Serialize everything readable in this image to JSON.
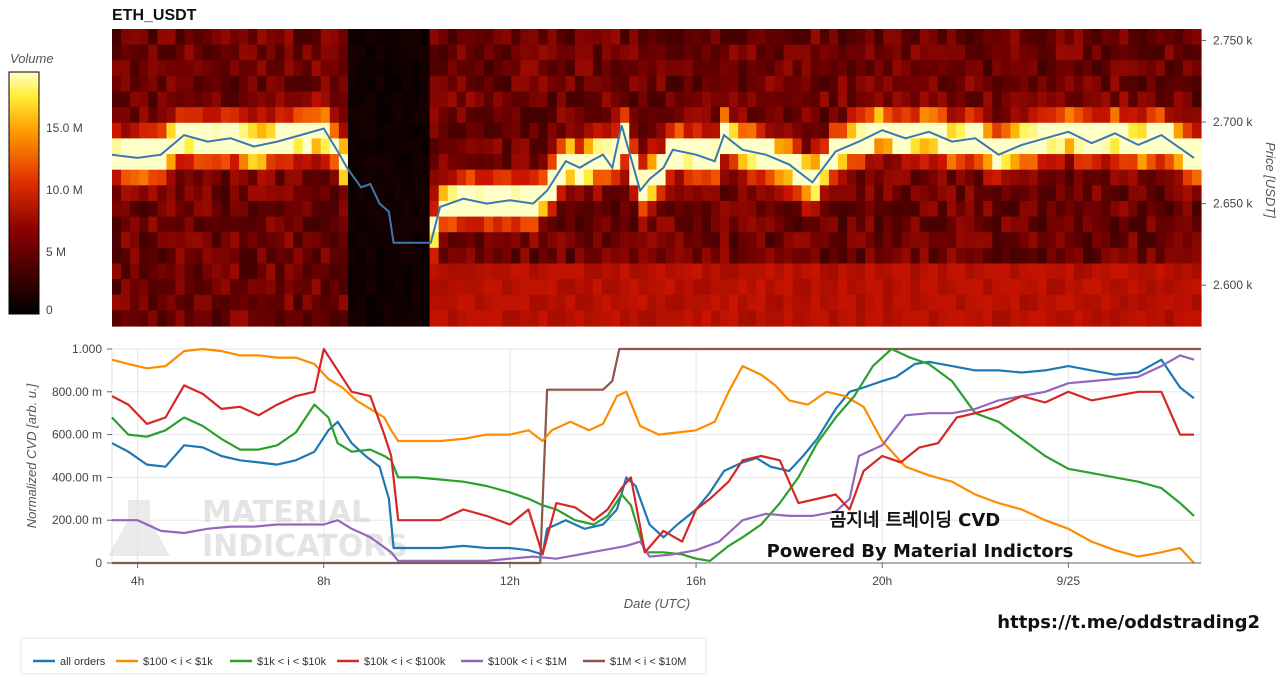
{
  "colors": {
    "price_line": "#3b78b0",
    "heat_low": "#000000",
    "heat_mid": "#cc0000",
    "heat_high": "#ffff66",
    "all_orders": "#1f77b4",
    "s100_1k": "#ff8c00",
    "s1k_10k": "#2ca02c",
    "s10k_100k": "#d62728",
    "s100k_1m": "#9467bd",
    "s1m_10m": "#8c564b"
  },
  "chart_data": [
    {
      "type": "heatmap",
      "title": "ETH_USDT",
      "ylabel": "Price [USDT]",
      "ylim": [
        2575,
        2757
      ],
      "y_ticks": [
        "2.600 k",
        "2.650 k",
        "2.700 k",
        "2.750 k"
      ],
      "y_tick_values": [
        2600,
        2650,
        2700,
        2750
      ],
      "colorbar": {
        "label": "Volume",
        "range": [
          0,
          19500000
        ],
        "ticks": [
          "0",
          "5 M",
          "10.0 M",
          "15.0 M"
        ],
        "tick_values": [
          0,
          5000000,
          10000000,
          15000000
        ]
      },
      "price_series": {
        "name": "Price",
        "x": [
          3.45,
          4.0,
          4.5,
          5.0,
          5.5,
          6.0,
          6.5,
          7.0,
          7.5,
          8.0,
          8.3,
          8.5,
          8.8,
          9.0,
          9.2,
          9.4,
          9.5,
          10.3,
          10.5,
          11.0,
          11.5,
          12.0,
          12.5,
          12.8,
          13.2,
          13.5,
          13.8,
          14.0,
          14.2,
          14.4,
          14.6,
          14.8,
          15.0,
          15.3,
          15.5,
          16.0,
          16.4,
          16.6,
          17.0,
          17.5,
          18.0,
          18.5,
          19.0,
          19.5,
          20.0,
          20.5,
          21.0,
          21.5,
          22.0,
          22.5,
          23.0,
          23.5,
          24.0,
          24.5,
          25.0,
          25.5,
          26.0,
          26.7
        ],
        "y": [
          2680,
          2678,
          2680,
          2692,
          2688,
          2690,
          2685,
          2688,
          2692,
          2696,
          2682,
          2672,
          2660,
          2662,
          2650,
          2645,
          2626,
          2626,
          2648,
          2653,
          2650,
          2652,
          2650,
          2658,
          2676,
          2672,
          2677,
          2680,
          2672,
          2698,
          2678,
          2658,
          2665,
          2672,
          2683,
          2680,
          2676,
          2692,
          2683,
          2680,
          2674,
          2663,
          2682,
          2688,
          2695,
          2690,
          2694,
          2688,
          2690,
          2680,
          2686,
          2690,
          2694,
          2687,
          2693,
          2686,
          2692,
          2678
        ]
      },
      "x_range": [
        3.45,
        26.85
      ]
    },
    {
      "type": "line",
      "xlabel": "Date (UTC)",
      "ylabel": "Normalized CVD [arb. u.]",
      "ylim": [
        0,
        1
      ],
      "x_ticks": [
        "4h",
        "8h",
        "12h",
        "16h",
        "20h",
        "9/25"
      ],
      "x_tick_values": [
        4,
        8,
        12,
        16,
        20,
        24
      ],
      "y_ticks": [
        "0",
        "200.00 m",
        "400.00 m",
        "600.00 m",
        "800.00 m",
        "1.000"
      ],
      "y_tick_values": [
        0,
        0.2,
        0.4,
        0.6,
        0.8,
        1.0
      ],
      "x_range": [
        3.45,
        26.85
      ],
      "series": [
        {
          "name": "all orders",
          "x": [
            3.45,
            3.8,
            4.2,
            4.6,
            5.0,
            5.4,
            5.8,
            6.2,
            6.6,
            7.0,
            7.4,
            7.8,
            8.1,
            8.3,
            8.6,
            8.9,
            9.2,
            9.4,
            9.5,
            10.0,
            10.5,
            11.0,
            11.5,
            12.0,
            12.4,
            12.7,
            12.8,
            13.2,
            13.6,
            14.0,
            14.3,
            14.5,
            14.7,
            15.0,
            15.3,
            15.6,
            16.0,
            16.3,
            16.6,
            17.0,
            17.3,
            17.6,
            18.0,
            18.3,
            18.6,
            19.0,
            19.3,
            19.6,
            20.0,
            20.3,
            20.7,
            21.0,
            21.5,
            22.0,
            22.5,
            23.0,
            23.5,
            24.0,
            24.5,
            25.0,
            25.5,
            26.0,
            26.4,
            26.7
          ],
          "y": [
            0.56,
            0.52,
            0.46,
            0.45,
            0.55,
            0.54,
            0.5,
            0.48,
            0.47,
            0.46,
            0.48,
            0.52,
            0.62,
            0.66,
            0.56,
            0.5,
            0.45,
            0.3,
            0.07,
            0.07,
            0.07,
            0.08,
            0.07,
            0.07,
            0.06,
            0.04,
            0.16,
            0.2,
            0.16,
            0.18,
            0.25,
            0.4,
            0.36,
            0.18,
            0.12,
            0.18,
            0.25,
            0.33,
            0.43,
            0.47,
            0.49,
            0.45,
            0.43,
            0.5,
            0.58,
            0.72,
            0.8,
            0.82,
            0.85,
            0.87,
            0.93,
            0.94,
            0.92,
            0.9,
            0.9,
            0.89,
            0.9,
            0.92,
            0.9,
            0.88,
            0.89,
            0.95,
            0.82,
            0.77
          ]
        },
        {
          "name": "$100 < i < $1k",
          "x": [
            3.45,
            3.8,
            4.2,
            4.6,
            5.0,
            5.4,
            5.8,
            6.2,
            6.6,
            7.0,
            7.4,
            7.8,
            8.1,
            8.4,
            8.7,
            9.0,
            9.3,
            9.45,
            9.6,
            10.0,
            10.5,
            11.0,
            11.5,
            12.0,
            12.4,
            12.7,
            12.9,
            13.3,
            13.7,
            14.0,
            14.3,
            14.5,
            14.8,
            15.2,
            15.6,
            16.0,
            16.4,
            16.7,
            17.0,
            17.4,
            17.7,
            18.0,
            18.4,
            18.8,
            19.2,
            19.6,
            20.0,
            20.5,
            21.0,
            21.5,
            22.0,
            22.5,
            23.0,
            23.5,
            24.0,
            24.5,
            25.0,
            25.5,
            26.0,
            26.4,
            26.7
          ],
          "y": [
            0.95,
            0.93,
            0.91,
            0.92,
            0.99,
            1.0,
            0.99,
            0.97,
            0.97,
            0.96,
            0.96,
            0.93,
            0.86,
            0.82,
            0.76,
            0.72,
            0.68,
            0.62,
            0.57,
            0.57,
            0.57,
            0.58,
            0.6,
            0.6,
            0.62,
            0.57,
            0.62,
            0.66,
            0.62,
            0.65,
            0.78,
            0.8,
            0.64,
            0.6,
            0.61,
            0.62,
            0.66,
            0.8,
            0.92,
            0.88,
            0.83,
            0.76,
            0.74,
            0.8,
            0.78,
            0.73,
            0.57,
            0.45,
            0.41,
            0.38,
            0.32,
            0.28,
            0.25,
            0.2,
            0.16,
            0.1,
            0.06,
            0.03,
            0.05,
            0.07,
            0.0
          ]
        },
        {
          "name": "$1k < i < $10k",
          "x": [
            3.45,
            3.8,
            4.2,
            4.6,
            5.0,
            5.4,
            5.8,
            6.2,
            6.6,
            7.0,
            7.4,
            7.8,
            8.1,
            8.3,
            8.6,
            9.0,
            9.3,
            9.45,
            9.6,
            10.0,
            10.5,
            11.0,
            11.5,
            12.0,
            12.4,
            12.7,
            13.0,
            13.4,
            13.8,
            14.1,
            14.4,
            14.6,
            14.9,
            15.3,
            15.7,
            16.0,
            16.3,
            16.7,
            17.0,
            17.4,
            17.8,
            18.2,
            18.6,
            19.0,
            19.4,
            19.8,
            20.2,
            20.6,
            21.0,
            21.5,
            22.0,
            22.5,
            23.0,
            23.5,
            24.0,
            24.5,
            25.0,
            25.5,
            26.0,
            26.4,
            26.7
          ],
          "y": [
            0.68,
            0.6,
            0.59,
            0.62,
            0.68,
            0.64,
            0.58,
            0.53,
            0.53,
            0.55,
            0.61,
            0.74,
            0.68,
            0.56,
            0.52,
            0.53,
            0.5,
            0.48,
            0.4,
            0.4,
            0.39,
            0.38,
            0.36,
            0.33,
            0.3,
            0.27,
            0.25,
            0.2,
            0.18,
            0.22,
            0.32,
            0.27,
            0.05,
            0.05,
            0.04,
            0.02,
            0.01,
            0.08,
            0.12,
            0.18,
            0.28,
            0.4,
            0.56,
            0.68,
            0.78,
            0.92,
            1.0,
            0.96,
            0.93,
            0.85,
            0.7,
            0.66,
            0.58,
            0.5,
            0.44,
            0.42,
            0.4,
            0.38,
            0.35,
            0.28,
            0.22
          ]
        },
        {
          "name": "$10k < i < $100k",
          "x": [
            3.45,
            3.8,
            4.2,
            4.6,
            5.0,
            5.4,
            5.8,
            6.2,
            6.6,
            7.0,
            7.4,
            7.8,
            8.0,
            8.3,
            8.6,
            9.0,
            9.3,
            9.45,
            9.6,
            10.0,
            10.5,
            11.0,
            11.5,
            12.0,
            12.4,
            12.7,
            13.0,
            13.4,
            13.8,
            14.1,
            14.4,
            14.6,
            14.9,
            15.3,
            15.7,
            16.0,
            16.3,
            16.7,
            17.0,
            17.4,
            17.8,
            18.2,
            18.6,
            19.0,
            19.3,
            19.6,
            20.0,
            20.4,
            20.8,
            21.2,
            21.6,
            22.0,
            22.5,
            23.0,
            23.5,
            24.0,
            24.5,
            25.0,
            25.5,
            26.0,
            26.4,
            26.7
          ],
          "y": [
            0.78,
            0.74,
            0.65,
            0.68,
            0.83,
            0.79,
            0.72,
            0.73,
            0.69,
            0.74,
            0.78,
            0.8,
            1.0,
            0.9,
            0.8,
            0.78,
            0.6,
            0.5,
            0.2,
            0.2,
            0.2,
            0.25,
            0.22,
            0.18,
            0.25,
            0.04,
            0.28,
            0.26,
            0.2,
            0.25,
            0.35,
            0.4,
            0.05,
            0.15,
            0.1,
            0.25,
            0.3,
            0.38,
            0.48,
            0.5,
            0.48,
            0.28,
            0.3,
            0.32,
            0.25,
            0.43,
            0.5,
            0.47,
            0.54,
            0.56,
            0.68,
            0.7,
            0.73,
            0.78,
            0.75,
            0.8,
            0.76,
            0.78,
            0.8,
            0.8,
            0.6,
            0.6
          ]
        },
        {
          "name": "$100k < i < $1M",
          "x": [
            3.45,
            4.0,
            4.5,
            5.0,
            5.5,
            6.0,
            6.5,
            7.0,
            7.5,
            8.0,
            8.3,
            8.6,
            9.0,
            9.45,
            9.6,
            10.0,
            10.5,
            11.0,
            11.5,
            12.0,
            12.5,
            13.0,
            13.5,
            14.0,
            14.5,
            14.8,
            15.0,
            15.5,
            16.0,
            16.5,
            17.0,
            17.5,
            18.0,
            18.5,
            19.0,
            19.3,
            19.5,
            20.0,
            20.5,
            21.0,
            21.5,
            22.0,
            22.5,
            23.0,
            23.5,
            24.0,
            24.5,
            25.0,
            25.5,
            26.0,
            26.4,
            26.7
          ],
          "y": [
            0.2,
            0.2,
            0.15,
            0.14,
            0.16,
            0.17,
            0.17,
            0.18,
            0.18,
            0.18,
            0.2,
            0.16,
            0.12,
            0.05,
            0.01,
            0.01,
            0.01,
            0.01,
            0.01,
            0.02,
            0.03,
            0.02,
            0.04,
            0.06,
            0.08,
            0.1,
            0.03,
            0.04,
            0.06,
            0.1,
            0.2,
            0.23,
            0.22,
            0.22,
            0.24,
            0.3,
            0.5,
            0.55,
            0.69,
            0.7,
            0.7,
            0.72,
            0.76,
            0.78,
            0.8,
            0.84,
            0.85,
            0.86,
            0.87,
            0.92,
            0.97,
            0.95
          ]
        },
        {
          "name": "$1M < i < $10M",
          "x": [
            3.45,
            12.65,
            12.8,
            14.0,
            14.2,
            14.35,
            26.85
          ],
          "y": [
            0.0,
            0.0,
            0.81,
            0.81,
            0.85,
            1.0,
            1.0
          ]
        }
      ]
    }
  ],
  "legend": [
    {
      "label": "all orders",
      "color": "#1f77b4"
    },
    {
      "label": "$100 < i < $1k",
      "color": "#ff8c00"
    },
    {
      "label": "$1k < i < $10k",
      "color": "#2ca02c"
    },
    {
      "label": "$10k < i < $100k",
      "color": "#d62728"
    },
    {
      "label": "$100k < i < $1M",
      "color": "#9467bd"
    },
    {
      "label": "$1M < i < $10M",
      "color": "#8c564b"
    }
  ],
  "overlay": {
    "line1": "곰지네 트레이딩 CVD",
    "line2": "Powered By Material Indictors",
    "link": "https://t.me/oddstrading2",
    "watermark1": "MATERIAL",
    "watermark2": "INDICATORS"
  }
}
